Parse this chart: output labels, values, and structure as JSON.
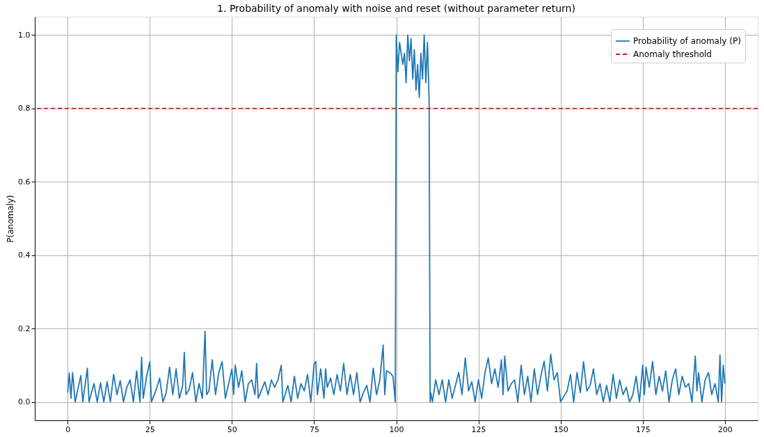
{
  "chart_data": {
    "type": "line",
    "title": "1. Probability of anomaly with noise and reset (without parameter return)",
    "ylabel": "P(anomaly)",
    "x": [
      0,
      0.5,
      1,
      1.5,
      2.3,
      4,
      4.6,
      6,
      6.5,
      8,
      9,
      10,
      11,
      12,
      13,
      14,
      15,
      16,
      17,
      18,
      19,
      20,
      21,
      22,
      22.5,
      23,
      24,
      25,
      25.5,
      27,
      28,
      29,
      30,
      31,
      32,
      33,
      34,
      35,
      35.5,
      36,
      37,
      38,
      39,
      40,
      41,
      41.8,
      42.3,
      43,
      44,
      45,
      46,
      47,
      48,
      49,
      50,
      50.5,
      51,
      52,
      53,
      54,
      55,
      56,
      57,
      57.5,
      58,
      60,
      61,
      62,
      63,
      64,
      65,
      65.5,
      67,
      68,
      69,
      70,
      71,
      72,
      73,
      74,
      75,
      75.5,
      76,
      77,
      78,
      78.5,
      79,
      80,
      81,
      82,
      83,
      84,
      85,
      86,
      87,
      88,
      89,
      90,
      91,
      92,
      93,
      94,
      95,
      96,
      96.5,
      97,
      98,
      99,
      99.7,
      100,
      100.5,
      101,
      102,
      102.5,
      103,
      103.5,
      104,
      104.5,
      105,
      105.5,
      106,
      106.5,
      107,
      107.5,
      108,
      108.5,
      109,
      109.5,
      110,
      110.3,
      110.5,
      111,
      112,
      113,
      114,
      115,
      116,
      117,
      118,
      119,
      120,
      121,
      122,
      123,
      124,
      125,
      126,
      127,
      128,
      129,
      130,
      131,
      132,
      132.5,
      133,
      134,
      135,
      136,
      137,
      138,
      139,
      140,
      141,
      142,
      143,
      144,
      145,
      146,
      147,
      148,
      149,
      150,
      152,
      153,
      154,
      155,
      156,
      157,
      158,
      159,
      160,
      161,
      162,
      163,
      164,
      165,
      166,
      167,
      168,
      169,
      170,
      171,
      172,
      173,
      174,
      175,
      175.5,
      176,
      177,
      178,
      179,
      180,
      181,
      182,
      183,
      184,
      185,
      186,
      187,
      188,
      189,
      190,
      191,
      191.5,
      192,
      193,
      194,
      195,
      196,
      197,
      198,
      198.5,
      199,
      199.5,
      200
    ],
    "series": [
      {
        "name": "Probability of anomaly (P)",
        "color": "#1f77b4",
        "values": [
          0.025,
          0.078,
          0.01,
          0.08,
          0,
          0.072,
          0,
          0.092,
          0,
          0.05,
          0,
          0.052,
          0,
          0.055,
          0,
          0.075,
          0.02,
          0.058,
          0,
          0.04,
          0.06,
          0,
          0.085,
          0,
          0.122,
          0.01,
          0.068,
          0.11,
          0,
          0.035,
          0.065,
          0,
          0.025,
          0.095,
          0.02,
          0.09,
          0.01,
          0.045,
          0.135,
          0.02,
          0.035,
          0.08,
          0,
          0.05,
          0.01,
          0.193,
          0.02,
          0.03,
          0.115,
          0.02,
          0.08,
          0.11,
          0.01,
          0.05,
          0.09,
          0.02,
          0.1,
          0.04,
          0.085,
          0,
          0.05,
          0.06,
          0.02,
          0.105,
          0.01,
          0.055,
          0.02,
          0.06,
          0.04,
          0.06,
          0.1,
          0,
          0.045,
          0,
          0.07,
          0.01,
          0.05,
          0.03,
          0.075,
          0,
          0.105,
          0.11,
          0.02,
          0.09,
          0.01,
          0.09,
          0.04,
          0.065,
          0.02,
          0.075,
          0.03,
          0.105,
          0.02,
          0.075,
          0.02,
          0.08,
          0,
          0.025,
          0.045,
          0,
          0.092,
          0.02,
          0.06,
          0.155,
          0.02,
          0.085,
          0.08,
          0.07,
          0,
          1.0,
          0.9,
          0.98,
          0.92,
          0.95,
          0.87,
          1.0,
          0.93,
          0.99,
          0.88,
          0.96,
          0.85,
          0.92,
          0.83,
          0.95,
          0.88,
          1.0,
          0.87,
          0.98,
          0.82,
          0,
          0.025,
          0,
          0.06,
          0.02,
          0.06,
          0,
          0.06,
          0.01,
          0.045,
          0.08,
          0.02,
          0.12,
          0.03,
          0.055,
          0,
          0.06,
          0.01,
          0.08,
          0.12,
          0.05,
          0.09,
          0.04,
          0.115,
          0.02,
          0.125,
          0.03,
          0.05,
          0.06,
          0,
          0.1,
          0.02,
          0.07,
          0,
          0.09,
          0.02,
          0.07,
          0.111,
          0.03,
          0.13,
          0.06,
          0.08,
          0,
          0.03,
          0.075,
          0,
          0.08,
          0.025,
          0.11,
          0.03,
          0.045,
          0.09,
          0.02,
          0.05,
          0,
          0.045,
          0,
          0.075,
          0.01,
          0.06,
          0.02,
          0.04,
          0,
          0.02,
          0.07,
          0,
          0.1,
          0.02,
          0.095,
          0.04,
          0.11,
          0.02,
          0.07,
          0.03,
          0.085,
          0,
          0.06,
          0.09,
          0.02,
          0.07,
          0.04,
          0.05,
          0,
          0.125,
          0.03,
          0.08,
          0,
          0.06,
          0.08,
          0.02,
          0.05,
          0,
          0.128,
          0,
          0.1,
          0.05
        ]
      }
    ],
    "ref_lines": [
      {
        "axis": "y",
        "value": 0.8,
        "label": "Anomaly threshold",
        "color": "#ff0000",
        "line_style": "dashed"
      }
    ],
    "xlim": [
      -10,
      210
    ],
    "ylim": [
      -0.05,
      1.05
    ],
    "xticks": [
      0,
      25,
      50,
      75,
      100,
      125,
      150,
      175,
      200
    ],
    "yticks": [
      {
        "value": 0,
        "label": "0.0"
      },
      {
        "value": 0.2,
        "label": "0.2"
      },
      {
        "value": 0.4,
        "label": "0.4"
      },
      {
        "value": 0.6,
        "label": "0.6"
      },
      {
        "value": 0.8,
        "label": "0.8"
      },
      {
        "value": 1,
        "label": "1.0"
      }
    ],
    "grid": true,
    "legend": "top right",
    "line_style": "solid"
  }
}
